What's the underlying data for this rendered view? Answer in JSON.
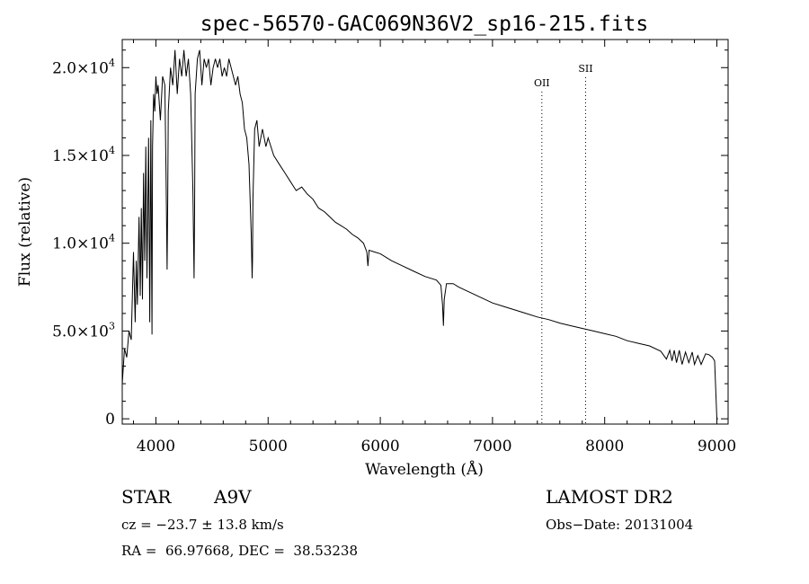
{
  "chart_data": {
    "type": "line",
    "title": "spec-56570-GAC069N36V2_sp16-215.fits",
    "xlabel": "Wavelength (Å)",
    "ylabel": "Flux (relative)",
    "xlim": [
      3700,
      9100
    ],
    "ylim": [
      -300,
      21600
    ],
    "x_ticks": [
      4000,
      5000,
      6000,
      7000,
      8000,
      9000
    ],
    "x_tick_labels": [
      "4000",
      "5000",
      "6000",
      "7000",
      "8000",
      "9000"
    ],
    "y_ticks": [
      0,
      5000,
      10000,
      15000,
      20000
    ],
    "y_tick_labels": [
      {
        "mant": "0",
        "exp": ""
      },
      {
        "mant": "5.0×10",
        "exp": "3"
      },
      {
        "mant": "1.0×10",
        "exp": "4"
      },
      {
        "mant": "1.5×10",
        "exp": "4"
      },
      {
        "mant": "2.0×10",
        "exp": "4"
      }
    ],
    "emission_lines": [
      {
        "label": "OII",
        "wavelength": 7440
      },
      {
        "label": "SII",
        "wavelength": 7830
      }
    ],
    "series": [
      {
        "x": [
          3700,
          3720,
          3740,
          3760,
          3780,
          3800,
          3815,
          3825,
          3835,
          3850,
          3860,
          3870,
          3880,
          3890,
          3900,
          3910,
          3920,
          3935,
          3945,
          3955,
          3965,
          3970,
          3980,
          3990,
          4000,
          4010,
          4020,
          4040,
          4060,
          4080,
          4090,
          4100,
          4105,
          4110,
          4130,
          4150,
          4170,
          4190,
          4210,
          4230,
          4250,
          4270,
          4290,
          4310,
          4330,
          4340,
          4345,
          4350,
          4370,
          4390,
          4410,
          4430,
          4450,
          4470,
          4490,
          4510,
          4530,
          4550,
          4570,
          4590,
          4610,
          4630,
          4650,
          4670,
          4690,
          4710,
          4730,
          4750,
          4770,
          4790,
          4810,
          4830,
          4850,
          4858,
          4861,
          4865,
          4880,
          4900,
          4920,
          4950,
          4980,
          5000,
          5050,
          5100,
          5150,
          5200,
          5250,
          5300,
          5350,
          5400,
          5450,
          5500,
          5550,
          5600,
          5650,
          5700,
          5750,
          5800,
          5850,
          5880,
          5890,
          5900,
          5950,
          6000,
          6100,
          6200,
          6300,
          6400,
          6500,
          6540,
          6555,
          6563,
          6570,
          6590,
          6650,
          6700,
          6800,
          6900,
          7000,
          7100,
          7200,
          7300,
          7400,
          7500,
          7600,
          7700,
          7800,
          7900,
          8000,
          8100,
          8200,
          8300,
          8400,
          8500,
          8550,
          8580,
          8600,
          8620,
          8640,
          8665,
          8690,
          8720,
          8750,
          8780,
          8800,
          8830,
          8860,
          8900,
          8930,
          8960,
          8980,
          9000,
          9010
        ],
        "y": [
          2000,
          4000,
          3500,
          5000,
          4500,
          9500,
          5500,
          9000,
          6500,
          11500,
          7000,
          12000,
          6800,
          14000,
          9000,
          15500,
          8000,
          16000,
          5500,
          17000,
          4800,
          15500,
          18500,
          17500,
          19500,
          18500,
          19000,
          17000,
          19500,
          19000,
          14000,
          8500,
          12500,
          17500,
          20000,
          19000,
          21000,
          18500,
          20500,
          19500,
          21000,
          19500,
          20500,
          18500,
          13000,
          8000,
          12000,
          18500,
          20500,
          21000,
          19000,
          20500,
          20000,
          20500,
          19000,
          20000,
          20500,
          20000,
          20500,
          19500,
          20000,
          19500,
          20500,
          20000,
          19500,
          19000,
          19500,
          18500,
          18000,
          16500,
          16000,
          14500,
          10500,
          8000,
          9000,
          12500,
          16500,
          17000,
          15500,
          16500,
          15500,
          16000,
          15000,
          14500,
          14000,
          13500,
          13000,
          13200,
          12800,
          12500,
          12000,
          11800,
          11500,
          11200,
          11000,
          10800,
          10500,
          10300,
          10000,
          9500,
          8700,
          9600,
          9500,
          9400,
          9000,
          8700,
          8400,
          8100,
          7900,
          7600,
          6500,
          5300,
          6800,
          7700,
          7700,
          7500,
          7200,
          6900,
          6600,
          6400,
          6200,
          6000,
          5800,
          5650,
          5450,
          5300,
          5150,
          5000,
          4850,
          4700,
          4450,
          4300,
          4150,
          3850,
          3400,
          3900,
          3300,
          3900,
          3200,
          3900,
          3100,
          3800,
          3200,
          3800,
          3100,
          3600,
          3100,
          3700,
          3650,
          3500,
          3300,
          0,
          0
        ]
      }
    ]
  },
  "info": {
    "object_class": "STAR",
    "subclass": "A9V",
    "survey": "LAMOST DR2",
    "cz": "cz = −23.7 ± 13.8 km/s",
    "obs_date": "Obs−Date: 20131004",
    "radec": "RA =  66.97668, DEC =  38.53238"
  }
}
